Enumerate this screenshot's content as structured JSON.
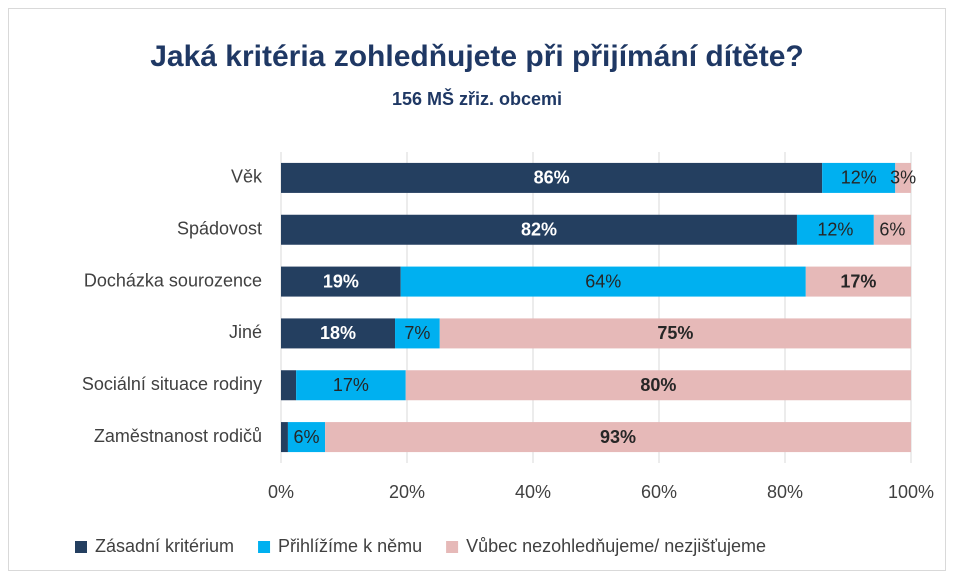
{
  "chart_data": {
    "type": "stacked_barh",
    "title": "Jaká kritéria zohledňujete při přijímání dítěte?",
    "subtitle": "156 MŠ zřiz. obcemi",
    "categories": [
      "Věk",
      "Spádovost",
      "Docházka sourozence",
      "Jiné",
      "Sociální situace rodiny",
      "Zaměstnanost rodičů"
    ],
    "series": [
      {
        "name": "Zásadní kritérium",
        "color": "#243f60",
        "values": [
          85.9,
          81.9,
          19,
          18.1,
          2.4,
          1.1
        ],
        "value_labels": [
          "86%",
          "82%",
          "19%",
          "18%",
          null,
          null
        ]
      },
      {
        "name": "Přihlížíme k němu",
        "color": "#00b0f0",
        "values": [
          11.6,
          12.2,
          64.3,
          7.1,
          17.4,
          5.9
        ],
        "value_labels": [
          "12%",
          "12%",
          "64%",
          "7%",
          "17%",
          "6%"
        ]
      },
      {
        "name": "Vůbec nezohledňujeme/ nezjišťujeme",
        "color": "#e6b9b8",
        "values": [
          2.5,
          5.9,
          16.7,
          74.8,
          80.2,
          93.0
        ],
        "value_labels": [
          "3%",
          "6%",
          "17%",
          "75%",
          "80%",
          "93%"
        ]
      }
    ],
    "xlim": [
      0,
      100
    ],
    "xticks": [
      {
        "value": 0,
        "label": "0%"
      },
      {
        "value": 20,
        "label": "20%"
      },
      {
        "value": 40,
        "label": "40%"
      },
      {
        "value": 60,
        "label": "60%"
      },
      {
        "value": 80,
        "label": "80%"
      },
      {
        "value": 100,
        "label": "100%"
      }
    ],
    "grid": true,
    "legend": "bottom"
  }
}
